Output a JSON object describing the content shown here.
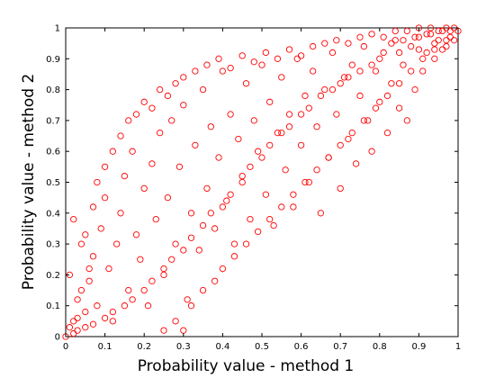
{
  "chart_data": {
    "type": "scatter",
    "title": "",
    "xlabel": "Probability value - method 1",
    "ylabel": "Probability value - method 2",
    "xlim": [
      0,
      1
    ],
    "ylim": [
      0,
      1
    ],
    "xticks": [
      "0",
      "0.1",
      "0.2",
      "0.3",
      "0.4",
      "0.5",
      "0.6",
      "0.7",
      "0.8",
      "0.9",
      "1"
    ],
    "yticks": [
      "0",
      "0.1",
      "0.2",
      "0.3",
      "0.4",
      "0.5",
      "0.6",
      "0.7",
      "0.8",
      "0.9",
      "1"
    ],
    "grid": false,
    "marker": "circle-open",
    "marker_color": "#ff0000",
    "series": [
      {
        "points": [
          [
            0.02,
            0.05
          ],
          [
            0.03,
            0.12
          ],
          [
            0.01,
            0.2
          ],
          [
            0.04,
            0.3
          ],
          [
            0.02,
            0.38
          ],
          [
            0.05,
            0.08
          ],
          [
            0.06,
            0.18
          ],
          [
            0.07,
            0.26
          ],
          [
            0.03,
            0.02
          ],
          [
            0.08,
            0.1
          ],
          [
            0.09,
            0.35
          ],
          [
            0.1,
            0.45
          ],
          [
            0.11,
            0.22
          ],
          [
            0.12,
            0.05
          ],
          [
            0.13,
            0.3
          ],
          [
            0.14,
            0.4
          ],
          [
            0.15,
            0.52
          ],
          [
            0.16,
            0.15
          ],
          [
            0.17,
            0.6
          ],
          [
            0.18,
            0.33
          ],
          [
            0.19,
            0.25
          ],
          [
            0.2,
            0.48
          ],
          [
            0.21,
            0.1
          ],
          [
            0.22,
            0.56
          ],
          [
            0.23,
            0.38
          ],
          [
            0.24,
            0.66
          ],
          [
            0.25,
            0.2
          ],
          [
            0.26,
            0.45
          ],
          [
            0.27,
            0.7
          ],
          [
            0.28,
            0.3
          ],
          [
            0.29,
            0.55
          ],
          [
            0.3,
            0.75
          ],
          [
            0.31,
            0.12
          ],
          [
            0.32,
            0.4
          ],
          [
            0.33,
            0.62
          ],
          [
            0.34,
            0.28
          ],
          [
            0.35,
            0.8
          ],
          [
            0.36,
            0.48
          ],
          [
            0.37,
            0.68
          ],
          [
            0.38,
            0.35
          ],
          [
            0.39,
            0.58
          ],
          [
            0.4,
            0.86
          ],
          [
            0.41,
            0.44
          ],
          [
            0.42,
            0.72
          ],
          [
            0.43,
            0.3
          ],
          [
            0.44,
            0.64
          ],
          [
            0.45,
            0.52
          ],
          [
            0.46,
            0.82
          ],
          [
            0.47,
            0.38
          ],
          [
            0.48,
            0.7
          ],
          [
            0.49,
            0.6
          ],
          [
            0.5,
            0.88
          ],
          [
            0.51,
            0.46
          ],
          [
            0.52,
            0.76
          ],
          [
            0.53,
            0.36
          ],
          [
            0.54,
            0.66
          ],
          [
            0.55,
            0.84
          ],
          [
            0.56,
            0.54
          ],
          [
            0.57,
            0.72
          ],
          [
            0.58,
            0.42
          ],
          [
            0.59,
            0.9
          ],
          [
            0.6,
            0.62
          ],
          [
            0.61,
            0.78
          ],
          [
            0.62,
            0.5
          ],
          [
            0.63,
            0.86
          ],
          [
            0.64,
            0.68
          ],
          [
            0.65,
            0.4
          ],
          [
            0.66,
            0.8
          ],
          [
            0.67,
            0.58
          ],
          [
            0.68,
            0.92
          ],
          [
            0.69,
            0.72
          ],
          [
            0.7,
            0.48
          ],
          [
            0.71,
            0.84
          ],
          [
            0.72,
            0.64
          ],
          [
            0.73,
            0.88
          ],
          [
            0.74,
            0.56
          ],
          [
            0.75,
            0.78
          ],
          [
            0.76,
            0.94
          ],
          [
            0.77,
            0.7
          ],
          [
            0.78,
            0.6
          ],
          [
            0.79,
            0.86
          ],
          [
            0.8,
            0.76
          ],
          [
            0.81,
            0.92
          ],
          [
            0.82,
            0.66
          ],
          [
            0.83,
            0.82
          ],
          [
            0.84,
            0.96
          ],
          [
            0.85,
            0.74
          ],
          [
            0.86,
            0.88
          ],
          [
            0.87,
            0.7
          ],
          [
            0.88,
            0.94
          ],
          [
            0.89,
            0.8
          ],
          [
            0.9,
            0.97
          ],
          [
            0.91,
            0.86
          ],
          [
            0.92,
            0.92
          ],
          [
            0.93,
            0.98
          ],
          [
            0.94,
            0.9
          ],
          [
            0.95,
            0.96
          ],
          [
            0.96,
            0.99
          ],
          [
            0.97,
            0.94
          ],
          [
            0.98,
            0.99
          ],
          [
            0.99,
            1.0
          ],
          [
            1.0,
            0.99
          ],
          [
            0.97,
            1.0
          ],
          [
            0.95,
            0.99
          ],
          [
            0.93,
            1.0
          ],
          [
            0.98,
            0.97
          ],
          [
            0.99,
            0.96
          ],
          [
            0.96,
            0.93
          ],
          [
            0.94,
            0.95
          ],
          [
            0.92,
            0.98
          ],
          [
            0.9,
            0.93
          ],
          [
            0.89,
            0.97
          ],
          [
            0.86,
            0.96
          ],
          [
            0.85,
            0.92
          ],
          [
            0.83,
            0.95
          ],
          [
            0.8,
            0.9
          ],
          [
            0.78,
            0.88
          ],
          [
            0.75,
            0.86
          ],
          [
            0.72,
            0.84
          ],
          [
            0.7,
            0.82
          ],
          [
            0.68,
            0.8
          ],
          [
            0.65,
            0.78
          ],
          [
            0.62,
            0.74
          ],
          [
            0.6,
            0.72
          ],
          [
            0.57,
            0.68
          ],
          [
            0.55,
            0.66
          ],
          [
            0.52,
            0.62
          ],
          [
            0.5,
            0.58
          ],
          [
            0.47,
            0.55
          ],
          [
            0.45,
            0.5
          ],
          [
            0.42,
            0.46
          ],
          [
            0.4,
            0.42
          ],
          [
            0.37,
            0.4
          ],
          [
            0.35,
            0.36
          ],
          [
            0.32,
            0.32
          ],
          [
            0.3,
            0.28
          ],
          [
            0.27,
            0.25
          ],
          [
            0.25,
            0.22
          ],
          [
            0.22,
            0.18
          ],
          [
            0.2,
            0.15
          ],
          [
            0.17,
            0.12
          ],
          [
            0.15,
            0.1
          ],
          [
            0.12,
            0.08
          ],
          [
            0.1,
            0.06
          ],
          [
            0.07,
            0.04
          ],
          [
            0.05,
            0.03
          ],
          [
            0.02,
            0.01
          ],
          [
            0.0,
            0.0
          ],
          [
            0.01,
            0.03
          ],
          [
            0.03,
            0.06
          ],
          [
            0.04,
            0.15
          ],
          [
            0.06,
            0.22
          ],
          [
            0.05,
            0.33
          ],
          [
            0.07,
            0.42
          ],
          [
            0.08,
            0.5
          ],
          [
            0.1,
            0.55
          ],
          [
            0.12,
            0.6
          ],
          [
            0.14,
            0.65
          ],
          [
            0.16,
            0.7
          ],
          [
            0.18,
            0.72
          ],
          [
            0.2,
            0.76
          ],
          [
            0.22,
            0.74
          ],
          [
            0.24,
            0.8
          ],
          [
            0.26,
            0.78
          ],
          [
            0.28,
            0.82
          ],
          [
            0.3,
            0.84
          ],
          [
            0.33,
            0.86
          ],
          [
            0.36,
            0.88
          ],
          [
            0.39,
            0.9
          ],
          [
            0.42,
            0.87
          ],
          [
            0.45,
            0.91
          ],
          [
            0.48,
            0.89
          ],
          [
            0.51,
            0.92
          ],
          [
            0.54,
            0.9
          ],
          [
            0.57,
            0.93
          ],
          [
            0.6,
            0.91
          ],
          [
            0.63,
            0.94
          ],
          [
            0.66,
            0.95
          ],
          [
            0.69,
            0.96
          ],
          [
            0.72,
            0.95
          ],
          [
            0.75,
            0.97
          ],
          [
            0.78,
            0.98
          ],
          [
            0.81,
            0.97
          ],
          [
            0.84,
            0.99
          ],
          [
            0.87,
            0.99
          ],
          [
            0.9,
            1.0
          ],
          [
            0.3,
            0.02
          ],
          [
            0.28,
            0.05
          ],
          [
            0.25,
            0.02
          ],
          [
            0.32,
            0.1
          ],
          [
            0.35,
            0.15
          ],
          [
            0.38,
            0.18
          ],
          [
            0.4,
            0.22
          ],
          [
            0.43,
            0.26
          ],
          [
            0.46,
            0.3
          ],
          [
            0.49,
            0.34
          ],
          [
            0.52,
            0.38
          ],
          [
            0.55,
            0.42
          ],
          [
            0.58,
            0.46
          ],
          [
            0.61,
            0.5
          ],
          [
            0.64,
            0.54
          ],
          [
            0.67,
            0.58
          ],
          [
            0.7,
            0.62
          ],
          [
            0.73,
            0.66
          ],
          [
            0.76,
            0.7
          ],
          [
            0.79,
            0.74
          ],
          [
            0.82,
            0.78
          ],
          [
            0.85,
            0.82
          ],
          [
            0.88,
            0.86
          ],
          [
            0.91,
            0.9
          ],
          [
            0.94,
            0.93
          ],
          [
            0.97,
            0.96
          ]
        ]
      }
    ]
  }
}
